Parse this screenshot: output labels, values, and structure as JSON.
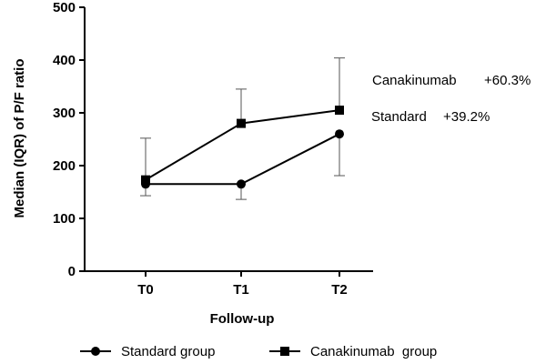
{
  "chart_data": {
    "type": "line",
    "title": "",
    "xlabel": "Follow-up",
    "ylabel": "Median (IQR) of P/F ratio",
    "ylim": [
      0,
      500
    ],
    "yticks": [
      0,
      100,
      200,
      300,
      400,
      500
    ],
    "categories": [
      "T0",
      "T1",
      "T2"
    ],
    "grid": false,
    "legend_position": "bottom",
    "series": [
      {
        "name": "Standard group",
        "marker": "circle",
        "color": "#000000",
        "values": [
          165,
          165,
          260
        ],
        "lower": [
          143,
          136,
          181
        ],
        "upper": [
          null,
          null,
          null
        ]
      },
      {
        "name": "Canakinumab  group",
        "marker": "square",
        "color": "#000000",
        "values": [
          173,
          280,
          305
        ],
        "lower": [
          null,
          null,
          null
        ],
        "upper": [
          252,
          345,
          404
        ]
      }
    ],
    "annotations": [
      {
        "name": "canakinumab",
        "label": "Canakinumab",
        "value": "+60.3%"
      },
      {
        "name": "standard",
        "label": "Standard",
        "value": "+39.2%"
      }
    ]
  }
}
